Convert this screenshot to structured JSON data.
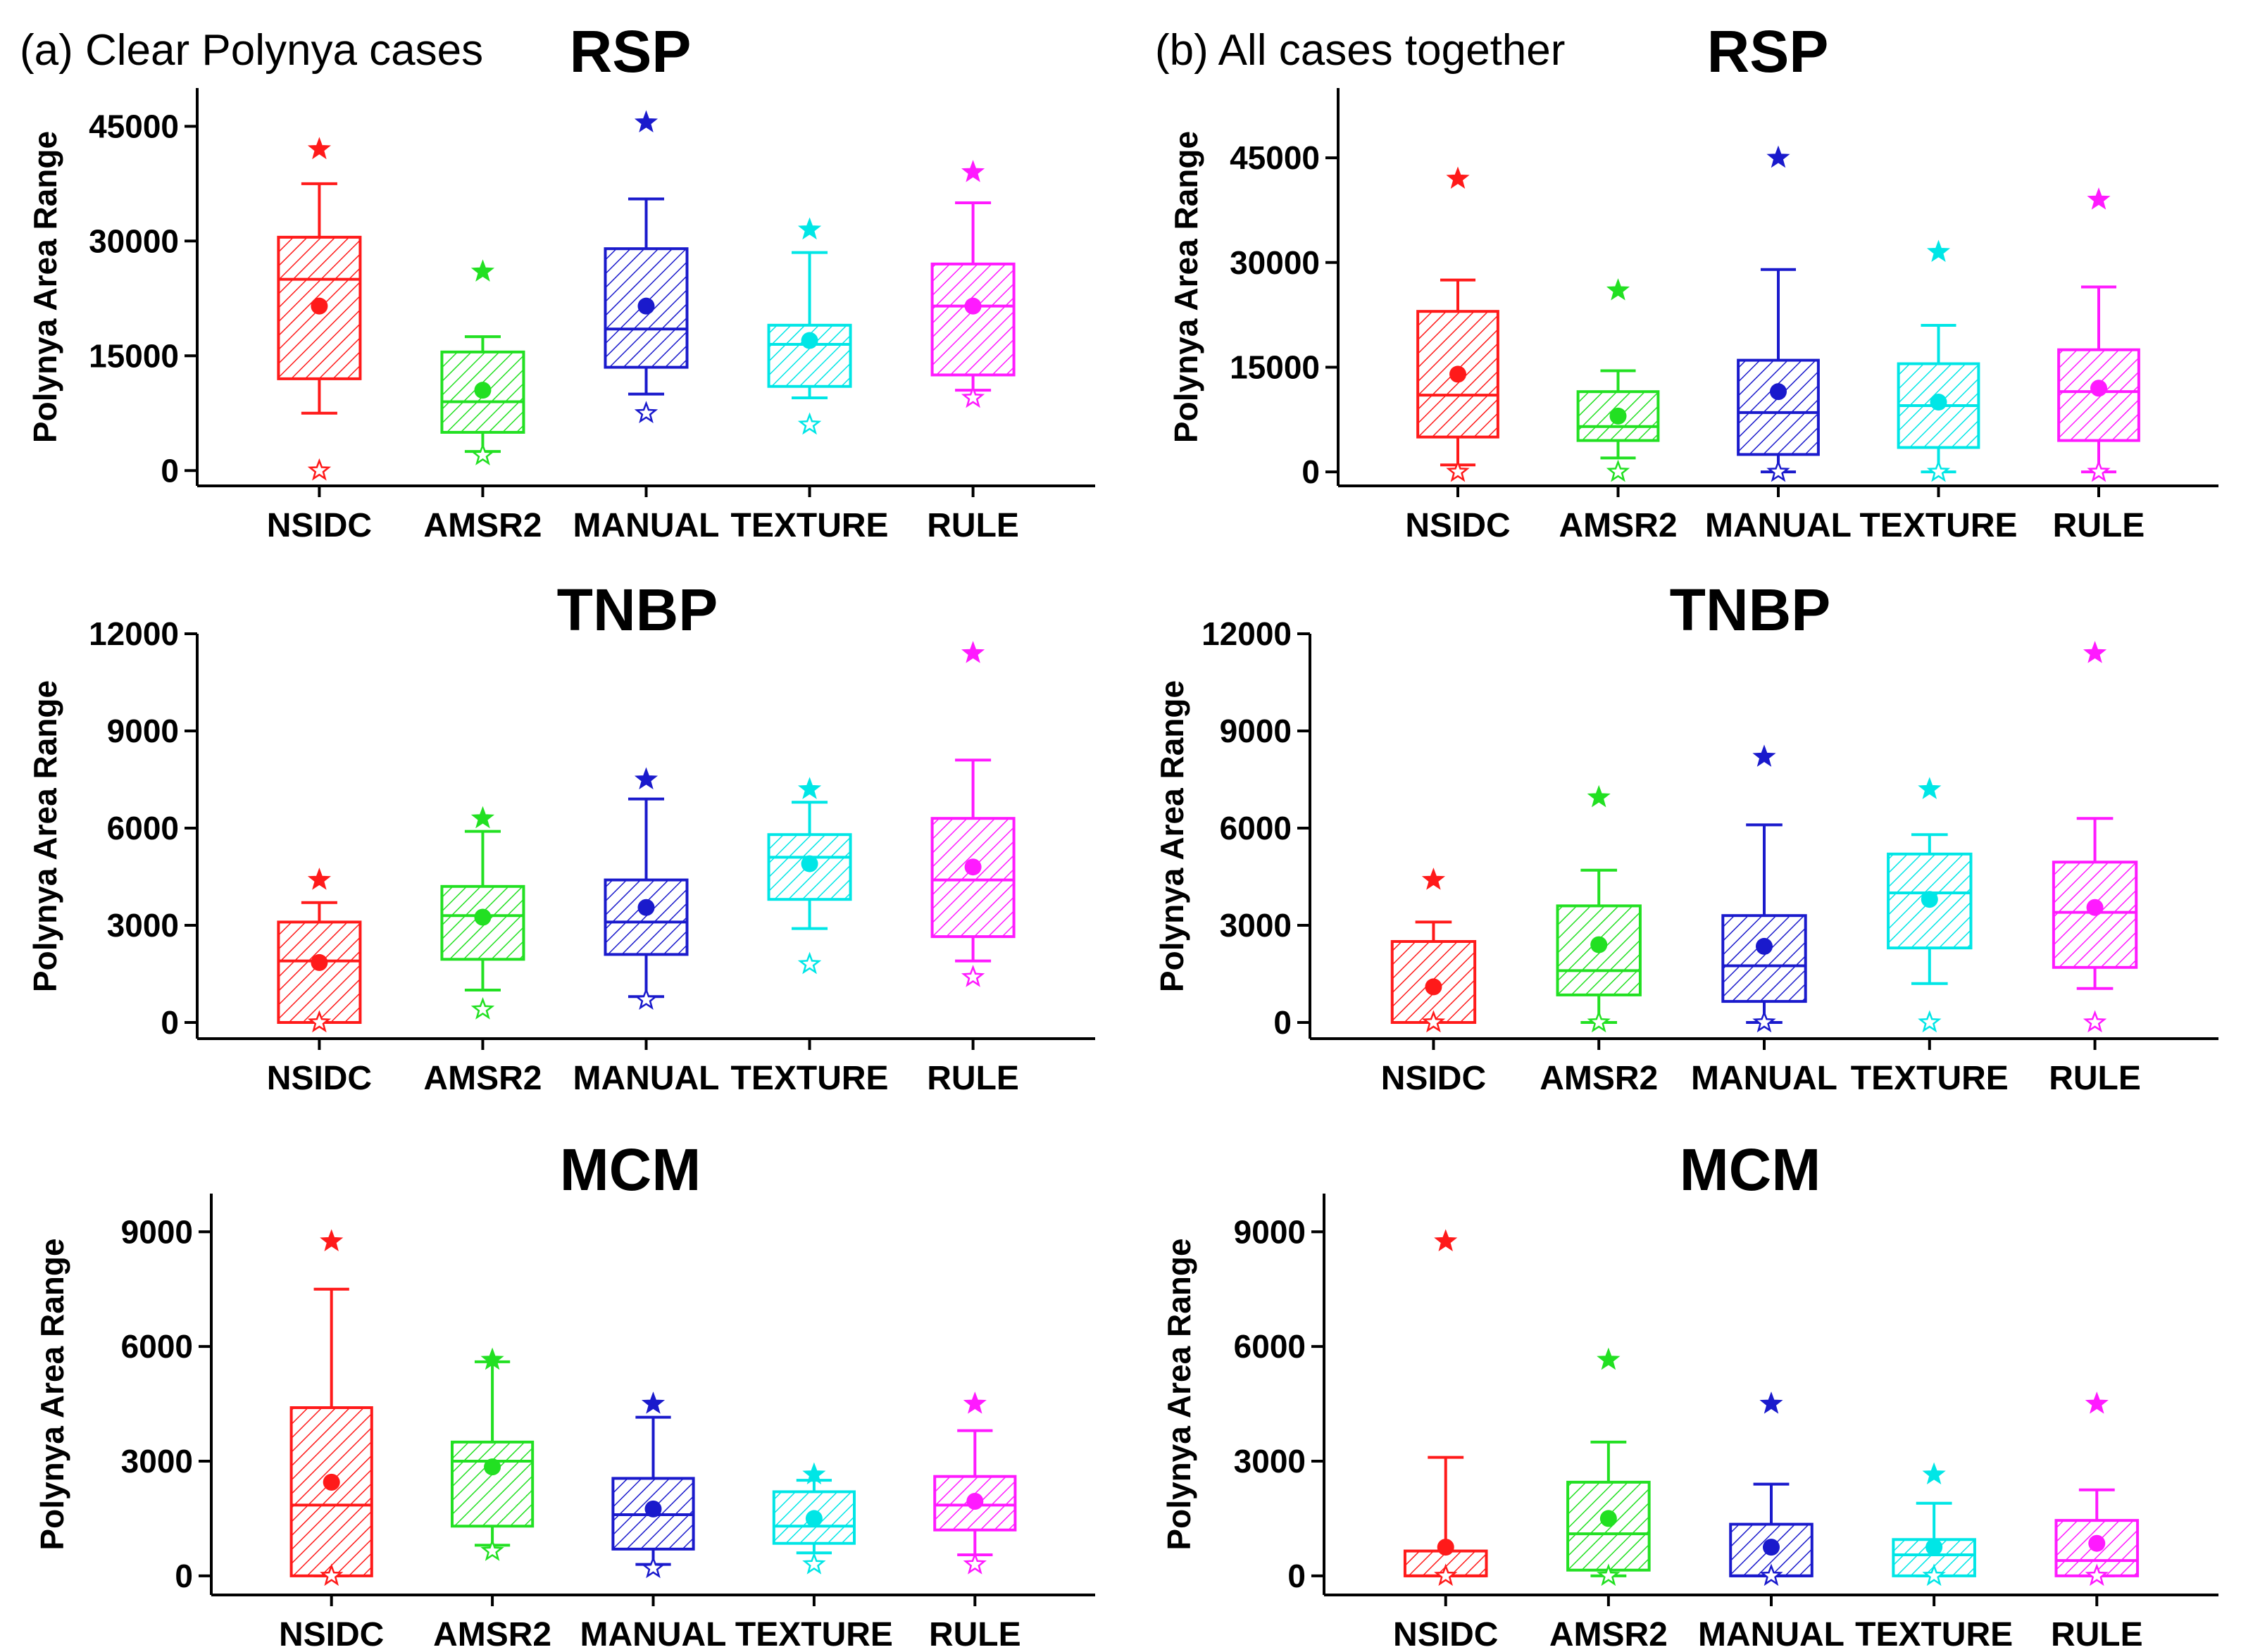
{
  "figure": {
    "panel_a_label": "(a) Clear Polynya cases",
    "panel_b_label": "(b) All cases together"
  },
  "colors": {
    "NSIDC": "#ff1a1a",
    "AMSR2": "#22e022",
    "MANUAL": "#1a1acc",
    "TEXTURE": "#00e6e6",
    "RULE": "#ff1aff"
  },
  "chart_data": [
    {
      "id": "a-rsp",
      "type": "box",
      "title": "RSP",
      "ylabel": "Polynya Area Range",
      "ylim": [
        -2000,
        50000
      ],
      "yticks": [
        0,
        15000,
        30000,
        45000
      ],
      "yticklabels": [
        "0",
        "15000",
        "30000",
        "45000"
      ],
      "categories": [
        "NSIDC",
        "AMSR2",
        "MANUAL",
        "TEXTURE",
        "RULE"
      ],
      "boxes": [
        {
          "whisker_low": 7500,
          "q1": 12000,
          "median": 25000,
          "q3": 30500,
          "whisker_high": 37500,
          "mean": 21500,
          "min": 0,
          "max": 42000
        },
        {
          "whisker_low": 2500,
          "q1": 5000,
          "median": 9000,
          "q3": 15500,
          "whisker_high": 17500,
          "mean": 10500,
          "min": 2000,
          "max": 26000
        },
        {
          "whisker_low": 10000,
          "q1": 13500,
          "median": 18500,
          "q3": 29000,
          "whisker_high": 35500,
          "mean": 21500,
          "min": 7500,
          "max": 45500
        },
        {
          "whisker_low": 9500,
          "q1": 11000,
          "median": 16500,
          "q3": 19000,
          "whisker_high": 28500,
          "mean": 17000,
          "min": 6000,
          "max": 31500
        },
        {
          "whisker_low": 10500,
          "q1": 12500,
          "median": 21500,
          "q3": 27000,
          "whisker_high": 35000,
          "mean": 21500,
          "min": 9500,
          "max": 39000
        }
      ]
    },
    {
      "id": "b-rsp",
      "type": "box",
      "title": "RSP",
      "ylabel": "Polynya Area Range",
      "ylim": [
        -2000,
        55000
      ],
      "yticks": [
        0,
        15000,
        30000,
        45000
      ],
      "yticklabels": [
        "0",
        "15000",
        "30000",
        "45000"
      ],
      "categories": [
        "NSIDC",
        "AMSR2",
        "MANUAL",
        "TEXTURE",
        "RULE"
      ],
      "boxes": [
        {
          "whisker_low": 1000,
          "q1": 5000,
          "median": 11000,
          "q3": 23000,
          "whisker_high": 27500,
          "mean": 14000,
          "min": 0,
          "max": 42000
        },
        {
          "whisker_low": 2000,
          "q1": 4500,
          "median": 6500,
          "q3": 11500,
          "whisker_high": 14500,
          "mean": 8000,
          "min": 0,
          "max": 26000
        },
        {
          "whisker_low": 0,
          "q1": 2500,
          "median": 8500,
          "q3": 16000,
          "whisker_high": 29000,
          "mean": 11500,
          "min": 0,
          "max": 45000
        },
        {
          "whisker_low": 0,
          "q1": 3500,
          "median": 9500,
          "q3": 15500,
          "whisker_high": 21000,
          "mean": 10000,
          "min": 0,
          "max": 31500
        },
        {
          "whisker_low": 0,
          "q1": 4500,
          "median": 11500,
          "q3": 17500,
          "whisker_high": 26500,
          "mean": 12000,
          "min": 0,
          "max": 39000
        }
      ]
    },
    {
      "id": "a-tnbp",
      "type": "box",
      "title": "TNBP",
      "ylabel": "Polynya Area Range",
      "ylim": [
        -500,
        12000
      ],
      "yticks": [
        0,
        3000,
        6000,
        9000,
        12000
      ],
      "yticklabels": [
        "0",
        "3000",
        "6000",
        "9000",
        "12000"
      ],
      "categories": [
        "NSIDC",
        "AMSR2",
        "MANUAL",
        "TEXTURE",
        "RULE"
      ],
      "boxes": [
        {
          "whisker_low": 0,
          "q1": 0,
          "median": 1900,
          "q3": 3100,
          "whisker_high": 3700,
          "mean": 1850,
          "min": 0,
          "max": 4400
        },
        {
          "whisker_low": 1000,
          "q1": 1950,
          "median": 3300,
          "q3": 4200,
          "whisker_high": 5900,
          "mean": 3250,
          "min": 400,
          "max": 6300
        },
        {
          "whisker_low": 800,
          "q1": 2100,
          "median": 3100,
          "q3": 4400,
          "whisker_high": 6900,
          "mean": 3550,
          "min": 700,
          "max": 7500
        },
        {
          "whisker_low": 2900,
          "q1": 3800,
          "median": 5100,
          "q3": 5800,
          "whisker_high": 6800,
          "mean": 4900,
          "min": 1800,
          "max": 7200
        },
        {
          "whisker_low": 1900,
          "q1": 2650,
          "median": 4400,
          "q3": 6300,
          "whisker_high": 8100,
          "mean": 4800,
          "min": 1400,
          "max": 11400
        }
      ]
    },
    {
      "id": "b-tnbp",
      "type": "box",
      "title": "TNBP",
      "ylabel": "Polynya Area Range",
      "ylim": [
        -500,
        12000
      ],
      "yticks": [
        0,
        3000,
        6000,
        9000,
        12000
      ],
      "yticklabels": [
        "0",
        "3000",
        "6000",
        "9000",
        "12000"
      ],
      "categories": [
        "NSIDC",
        "AMSR2",
        "MANUAL",
        "TEXTURE",
        "RULE"
      ],
      "boxes": [
        {
          "whisker_low": 0,
          "q1": 0,
          "median": 0,
          "q3": 2500,
          "whisker_high": 3100,
          "mean": 1100,
          "min": 0,
          "max": 4400
        },
        {
          "whisker_low": 0,
          "q1": 850,
          "median": 1600,
          "q3": 3600,
          "whisker_high": 4700,
          "mean": 2400,
          "min": 0,
          "max": 6950
        },
        {
          "whisker_low": 0,
          "q1": 650,
          "median": 1750,
          "q3": 3300,
          "whisker_high": 6100,
          "mean": 2350,
          "min": 0,
          "max": 8200
        },
        {
          "whisker_low": 1200,
          "q1": 2300,
          "median": 4000,
          "q3": 5200,
          "whisker_high": 5800,
          "mean": 3800,
          "min": 0,
          "max": 7200
        },
        {
          "whisker_low": 1050,
          "q1": 1700,
          "median": 3400,
          "q3": 4950,
          "whisker_high": 6300,
          "mean": 3550,
          "min": 0,
          "max": 11400
        }
      ]
    },
    {
      "id": "a-mcm",
      "type": "box",
      "title": "MCM",
      "ylabel": "Polynya Area Range",
      "ylim": [
        -500,
        10000
      ],
      "yticks": [
        0,
        3000,
        6000,
        9000
      ],
      "yticklabels": [
        "0",
        "3000",
        "6000",
        "9000"
      ],
      "categories": [
        "NSIDC",
        "AMSR2",
        "MANUAL",
        "TEXTURE",
        "RULE"
      ],
      "boxes": [
        {
          "whisker_low": 0,
          "q1": 0,
          "median": 1850,
          "q3": 4400,
          "whisker_high": 7500,
          "mean": 2450,
          "min": 0,
          "max": 8750
        },
        {
          "whisker_low": 800,
          "q1": 1300,
          "median": 3000,
          "q3": 3500,
          "whisker_high": 5600,
          "mean": 2850,
          "min": 650,
          "max": 5650
        },
        {
          "whisker_low": 300,
          "q1": 700,
          "median": 1600,
          "q3": 2550,
          "whisker_high": 4150,
          "mean": 1750,
          "min": 200,
          "max": 4500
        },
        {
          "whisker_low": 600,
          "q1": 850,
          "median": 1300,
          "q3": 2200,
          "whisker_high": 2500,
          "mean": 1500,
          "min": 300,
          "max": 2650
        },
        {
          "whisker_low": 550,
          "q1": 1200,
          "median": 1850,
          "q3": 2600,
          "whisker_high": 3800,
          "mean": 1950,
          "min": 300,
          "max": 4500
        }
      ]
    },
    {
      "id": "b-mcm",
      "type": "box",
      "title": "MCM",
      "ylabel": "Polynya Area Range",
      "ylim": [
        -500,
        10000
      ],
      "yticks": [
        0,
        3000,
        6000,
        9000
      ],
      "yticklabels": [
        "0",
        "3000",
        "6000",
        "9000"
      ],
      "categories": [
        "NSIDC",
        "AMSR2",
        "MANUAL",
        "TEXTURE",
        "RULE"
      ],
      "boxes": [
        {
          "whisker_low": 0,
          "q1": 0,
          "median": 0,
          "q3": 650,
          "whisker_high": 3100,
          "mean": 750,
          "min": 0,
          "max": 8750
        },
        {
          "whisker_low": 0,
          "q1": 150,
          "median": 1100,
          "q3": 2450,
          "whisker_high": 3500,
          "mean": 1500,
          "min": 0,
          "max": 5650
        },
        {
          "whisker_low": 0,
          "q1": 0,
          "median": 0,
          "q3": 1350,
          "whisker_high": 2400,
          "mean": 750,
          "min": 0,
          "max": 4500
        },
        {
          "whisker_low": 0,
          "q1": 0,
          "median": 550,
          "q3": 950,
          "whisker_high": 1900,
          "mean": 750,
          "min": 0,
          "max": 2650
        },
        {
          "whisker_low": 0,
          "q1": 0,
          "median": 400,
          "q3": 1450,
          "whisker_high": 2250,
          "mean": 850,
          "min": 0,
          "max": 4500
        }
      ]
    }
  ]
}
